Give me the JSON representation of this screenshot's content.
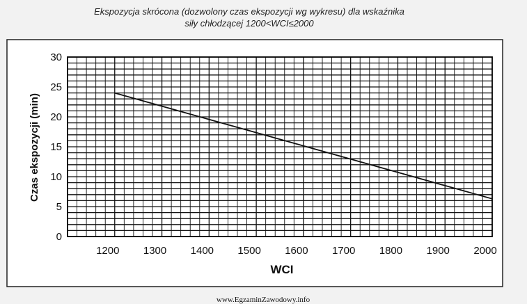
{
  "chart_data": {
    "type": "line",
    "title_lines": [
      "Ekspozycja skrócona (dozwolony czas ekspozycji wg wykresu) dla wskaźnika",
      "siły chłodzącej 1200<WCI≤2000"
    ],
    "xlabel": "WCI",
    "ylabel": "Czas ekspozycji (min)",
    "xlim": [
      1100,
      2000
    ],
    "ylim": [
      0,
      30
    ],
    "x_ticks": [
      1200,
      1300,
      1400,
      1500,
      1600,
      1700,
      1800,
      1900,
      2000
    ],
    "y_ticks": [
      0,
      5,
      10,
      15,
      20,
      25,
      30
    ],
    "grid": true,
    "series": [
      {
        "x": [
          1200,
          2000
        ],
        "y": [
          24,
          6.3
        ]
      }
    ]
  },
  "footer": {
    "source": "www.EgzaminZawodowy.info"
  },
  "colors": {
    "background": "#f2f2f2",
    "plot_background": "#ffffff",
    "grid": "#111111",
    "line": "#111111"
  }
}
